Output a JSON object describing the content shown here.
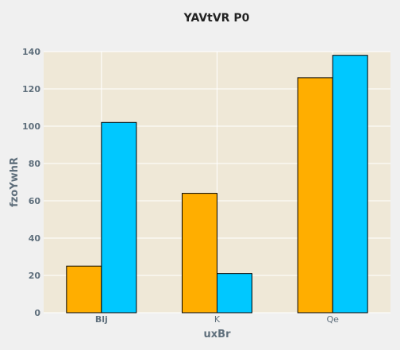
{
  "chart_data": {
    "type": "bar",
    "title": "YAVtVR P0",
    "xlabel": "uxBr",
    "ylabel": "fzoYwhR",
    "categories": [
      "Blj",
      "K",
      "Qe"
    ],
    "category_bold": [
      true,
      false,
      false
    ],
    "series": [
      {
        "values": [
          25,
          64,
          126
        ],
        "color": "#FFAE00"
      },
      {
        "values": [
          102,
          21,
          138
        ],
        "color": "#00C8FF"
      }
    ],
    "ylim": [
      0,
      140
    ],
    "yticks": [
      0,
      20,
      40,
      60,
      80,
      100,
      120,
      140
    ],
    "grid": true,
    "plot_background": "#efe8d7",
    "page_background": "#f0f0f0",
    "bar_edge_color": "#000000"
  }
}
